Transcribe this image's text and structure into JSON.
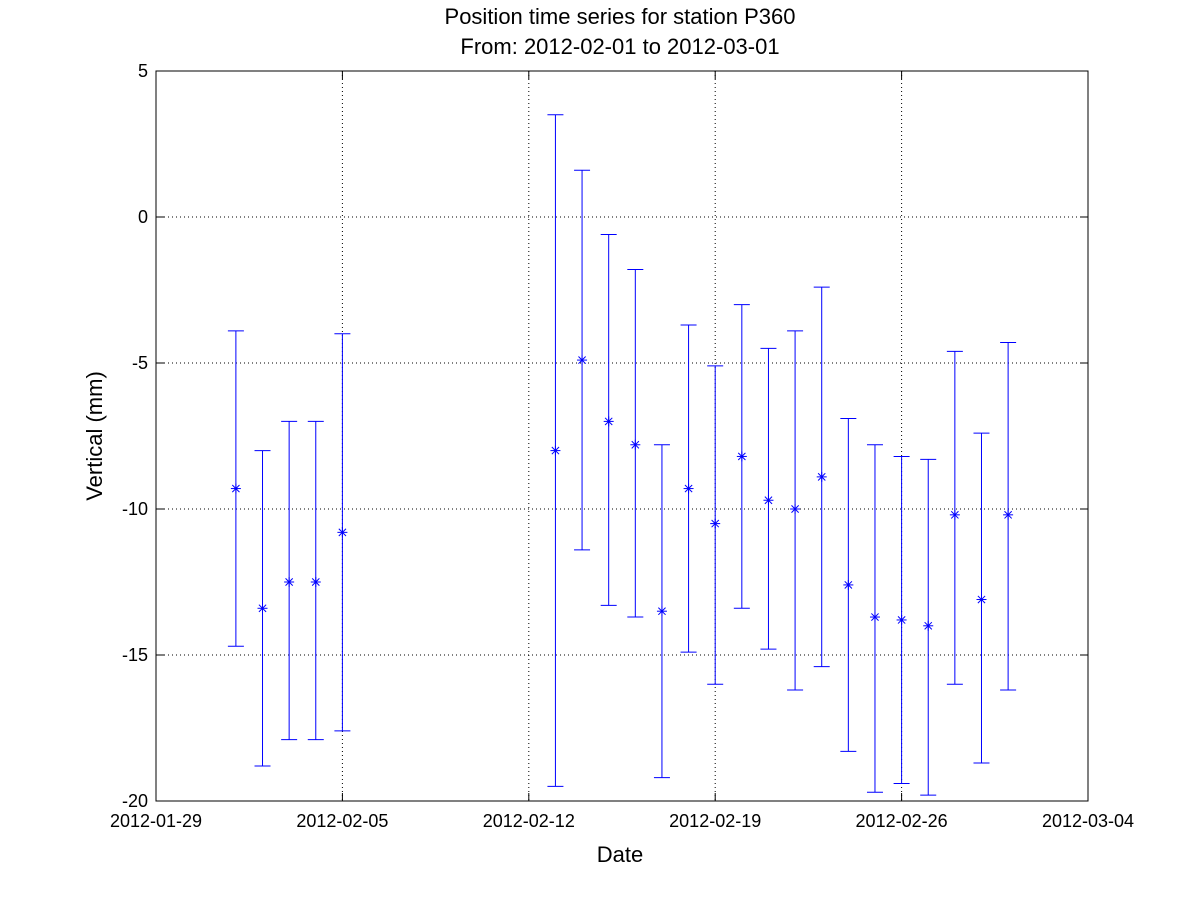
{
  "chart_data": {
    "type": "scatter",
    "title": "Position time series for station P360",
    "subtitle": "From: 2012-02-01 to 2012-03-01",
    "xlabel": "Date",
    "ylabel": "Vertical (mm)",
    "x_start": "2012-01-29",
    "xlim": [
      "2012-01-29",
      "2012-03-04"
    ],
    "ylim": [
      -20,
      5
    ],
    "xticks": [
      "2012-01-29",
      "2012-02-05",
      "2012-02-12",
      "2012-02-19",
      "2012-02-26",
      "2012-03-04"
    ],
    "yticks": [
      5,
      0,
      -5,
      -10,
      -15,
      -20
    ],
    "grid": true,
    "marker": "asterisk",
    "series_color": "#0000ff",
    "points": [
      {
        "date": "2012-02-01",
        "y": -9.3,
        "err_low": -14.7,
        "err_high": -3.9
      },
      {
        "date": "2012-02-02",
        "y": -13.4,
        "err_low": -18.8,
        "err_high": -8.0
      },
      {
        "date": "2012-02-03",
        "y": -12.5,
        "err_low": -17.9,
        "err_high": -7.0
      },
      {
        "date": "2012-02-04",
        "y": -12.5,
        "err_low": -17.9,
        "err_high": -7.0
      },
      {
        "date": "2012-02-05",
        "y": -10.8,
        "err_low": -17.6,
        "err_high": -4.0
      },
      {
        "date": "2012-02-13",
        "y": -8.0,
        "err_low": -19.5,
        "err_high": 3.5
      },
      {
        "date": "2012-02-14",
        "y": -4.9,
        "err_low": -11.4,
        "err_high": 1.6
      },
      {
        "date": "2012-02-15",
        "y": -7.0,
        "err_low": -13.3,
        "err_high": -0.6
      },
      {
        "date": "2012-02-16",
        "y": -7.8,
        "err_low": -13.7,
        "err_high": -1.8
      },
      {
        "date": "2012-02-17",
        "y": -13.5,
        "err_low": -19.2,
        "err_high": -7.8
      },
      {
        "date": "2012-02-18",
        "y": -9.3,
        "err_low": -14.9,
        "err_high": -3.7
      },
      {
        "date": "2012-02-19",
        "y": -10.5,
        "err_low": -16.0,
        "err_high": -5.1
      },
      {
        "date": "2012-02-20",
        "y": -8.2,
        "err_low": -13.4,
        "err_high": -3.0
      },
      {
        "date": "2012-02-21",
        "y": -9.7,
        "err_low": -14.8,
        "err_high": -4.5
      },
      {
        "date": "2012-02-22",
        "y": -10.0,
        "err_low": -16.2,
        "err_high": -3.9
      },
      {
        "date": "2012-02-23",
        "y": -8.9,
        "err_low": -15.4,
        "err_high": -2.4
      },
      {
        "date": "2012-02-24",
        "y": -12.6,
        "err_low": -18.3,
        "err_high": -6.9
      },
      {
        "date": "2012-02-25",
        "y": -13.7,
        "err_low": -19.7,
        "err_high": -7.8
      },
      {
        "date": "2012-02-26",
        "y": -13.8,
        "err_low": -19.4,
        "err_high": -8.2
      },
      {
        "date": "2012-02-27",
        "y": -14.0,
        "err_low": -19.8,
        "err_high": -8.3
      },
      {
        "date": "2012-02-28",
        "y": -10.2,
        "err_low": -16.0,
        "err_high": -4.6
      },
      {
        "date": "2012-02-29",
        "y": -13.1,
        "err_low": -18.7,
        "err_high": -7.4
      },
      {
        "date": "2012-03-01",
        "y": -10.2,
        "err_low": -16.2,
        "err_high": -4.3
      }
    ]
  }
}
